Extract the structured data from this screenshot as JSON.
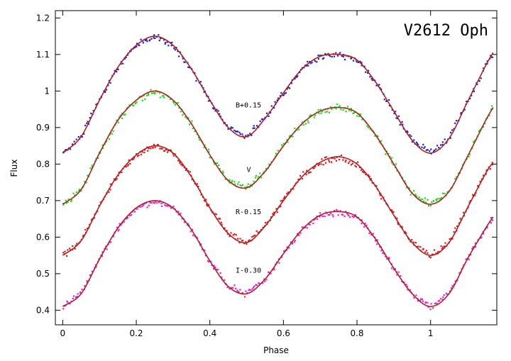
{
  "chart_data": {
    "type": "scatter",
    "title": "V2612 Oph",
    "xlabel": "Phase",
    "ylabel": "Flux",
    "xlim": [
      -0.02,
      1.18
    ],
    "ylim": [
      0.36,
      1.22
    ],
    "xticks": [
      0,
      0.2,
      0.4,
      0.6,
      0.8,
      1
    ],
    "xtick_labels": [
      "0",
      "0.2",
      "0.4",
      "0.6",
      "0.8",
      "1"
    ],
    "yticks": [
      0.4,
      0.5,
      0.6,
      0.7,
      0.8,
      0.9,
      1.0,
      1.1,
      1.2
    ],
    "ytick_labels": [
      "0.4",
      "0.5",
      "0.6",
      "0.7",
      "0.8",
      "0.9",
      "1",
      "1.1",
      "1.2"
    ],
    "grid": false,
    "fit_color": "#b02020",
    "series": [
      {
        "name": "B+0.15",
        "color": "#2020c8",
        "label_pos": [
          0.47,
          0.955
        ],
        "x": [
          0.0,
          0.05,
          0.1,
          0.15,
          0.2,
          0.25,
          0.3,
          0.35,
          0.4,
          0.45,
          0.5,
          0.55,
          0.6,
          0.65,
          0.7,
          0.75,
          0.8,
          0.85,
          0.9,
          0.95,
          1.0,
          1.05,
          1.1,
          1.15,
          1.17
        ],
        "y": [
          0.83,
          0.875,
          0.975,
          1.065,
          1.125,
          1.15,
          1.125,
          1.06,
          0.975,
          0.9,
          0.875,
          0.925,
          0.995,
          1.06,
          1.095,
          1.1,
          1.085,
          1.025,
          0.945,
          0.865,
          0.83,
          0.87,
          0.97,
          1.07,
          1.105
        ]
      },
      {
        "name": "V",
        "color": "#20d820",
        "label_pos": [
          0.5,
          0.778
        ],
        "x": [
          0.0,
          0.05,
          0.1,
          0.15,
          0.2,
          0.25,
          0.3,
          0.35,
          0.4,
          0.45,
          0.5,
          0.55,
          0.6,
          0.65,
          0.7,
          0.75,
          0.8,
          0.85,
          0.9,
          0.95,
          1.0,
          1.05,
          1.1,
          1.15,
          1.17
        ],
        "y": [
          0.69,
          0.73,
          0.83,
          0.92,
          0.975,
          1.0,
          0.975,
          0.91,
          0.825,
          0.755,
          0.735,
          0.78,
          0.85,
          0.91,
          0.945,
          0.955,
          0.94,
          0.88,
          0.8,
          0.72,
          0.69,
          0.725,
          0.82,
          0.92,
          0.955
        ]
      },
      {
        "name": "R-0.15",
        "color": "#e01818",
        "label_pos": [
          0.47,
          0.663
        ],
        "x": [
          0.0,
          0.05,
          0.1,
          0.15,
          0.2,
          0.25,
          0.3,
          0.35,
          0.4,
          0.45,
          0.5,
          0.55,
          0.6,
          0.65,
          0.7,
          0.75,
          0.8,
          0.85,
          0.9,
          0.95,
          1.0,
          1.05,
          1.1,
          1.15,
          1.17
        ],
        "y": [
          0.55,
          0.59,
          0.685,
          0.77,
          0.825,
          0.85,
          0.83,
          0.765,
          0.68,
          0.61,
          0.585,
          0.63,
          0.7,
          0.765,
          0.805,
          0.82,
          0.8,
          0.74,
          0.66,
          0.585,
          0.55,
          0.585,
          0.68,
          0.775,
          0.805
        ]
      },
      {
        "name": "I-0.30",
        "color": "#e020d8",
        "label_pos": [
          0.47,
          0.503
        ],
        "x": [
          0.0,
          0.05,
          0.1,
          0.15,
          0.2,
          0.25,
          0.3,
          0.35,
          0.4,
          0.45,
          0.5,
          0.55,
          0.6,
          0.65,
          0.7,
          0.75,
          0.8,
          0.85,
          0.9,
          0.95,
          1.0,
          1.05,
          1.1,
          1.15,
          1.17
        ],
        "y": [
          0.41,
          0.445,
          0.54,
          0.625,
          0.68,
          0.7,
          0.68,
          0.62,
          0.535,
          0.465,
          0.445,
          0.485,
          0.555,
          0.62,
          0.66,
          0.67,
          0.655,
          0.595,
          0.515,
          0.445,
          0.41,
          0.445,
          0.54,
          0.625,
          0.655
        ]
      }
    ]
  }
}
